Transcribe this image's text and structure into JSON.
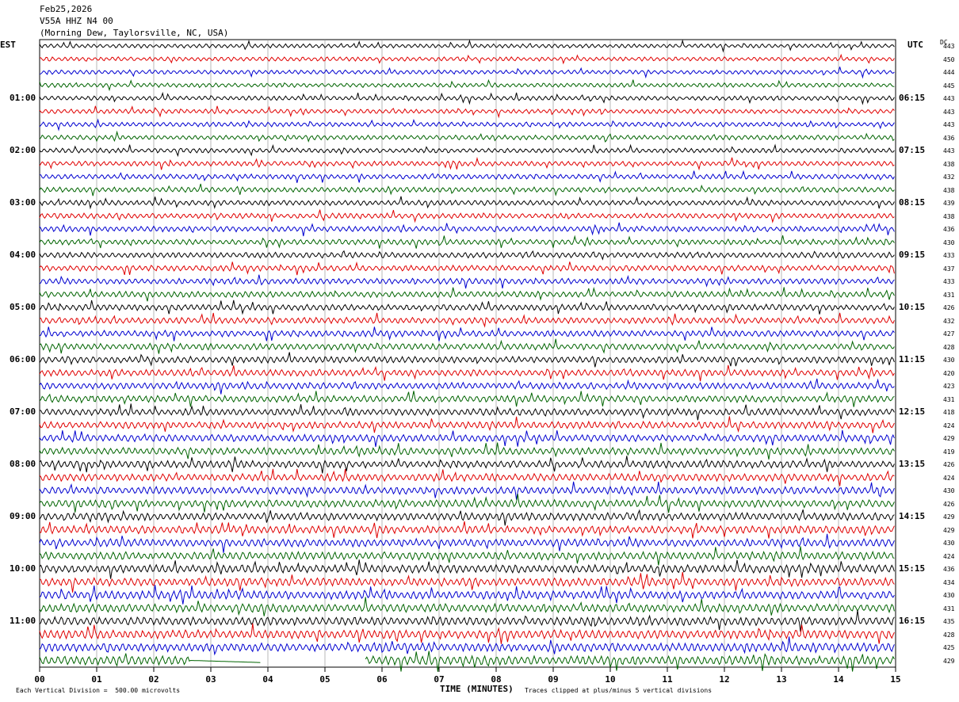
{
  "header": {
    "date": "Feb25,2026",
    "station": "V55A HHZ N4 00",
    "location": "(Morning Dew, Taylorsville, NC, USA)"
  },
  "left_timezone": "EST",
  "right_timezone": "UTC",
  "dc_label": "DC",
  "footer": {
    "scale_text": "Each Vertical Division =  500.00 microvolts",
    "xlabel": "TIME (MINUTES)",
    "clip_text": "Traces clipped at plus/minus 5 vertical divisions"
  },
  "colors": {
    "cycle": [
      "#000000",
      "#e00000",
      "#0000d0",
      "#006400"
    ],
    "grid": "#888888"
  },
  "chart_data": {
    "type": "line",
    "subtype": "helicorder",
    "xlabel": "TIME (MINUTES)",
    "xlim": [
      0,
      15
    ],
    "x_ticks": [
      "00",
      "01",
      "02",
      "03",
      "04",
      "05",
      "06",
      "07",
      "08",
      "09",
      "10",
      "11",
      "12",
      "13",
      "14",
      "15"
    ],
    "traces_per_hour": 4,
    "minutes_per_trace": 15,
    "left_hour_labels": [
      "01:00",
      "02:00",
      "03:00",
      "04:00",
      "05:00",
      "06:00",
      "07:00",
      "08:00",
      "09:00",
      "10:00",
      "11:00"
    ],
    "right_hour_labels": [
      "06:15",
      "07:15",
      "08:15",
      "09:15",
      "10:15",
      "11:15",
      "12:15",
      "13:15",
      "14:15",
      "15:15",
      "16:15"
    ],
    "dc_offsets": [
      443,
      450,
      444,
      445,
      443,
      443,
      443,
      436,
      443,
      438,
      432,
      438,
      439,
      438,
      436,
      430,
      433,
      437,
      433,
      431,
      426,
      432,
      427,
      428,
      430,
      420,
      423,
      431,
      418,
      424,
      429,
      419,
      426,
      424,
      430,
      426,
      429,
      429,
      430,
      424,
      436,
      434,
      430,
      431,
      435,
      428,
      425,
      429
    ],
    "grid": true,
    "scale_microvolts_per_division": 500.0,
    "clip_divisions": 5
  }
}
